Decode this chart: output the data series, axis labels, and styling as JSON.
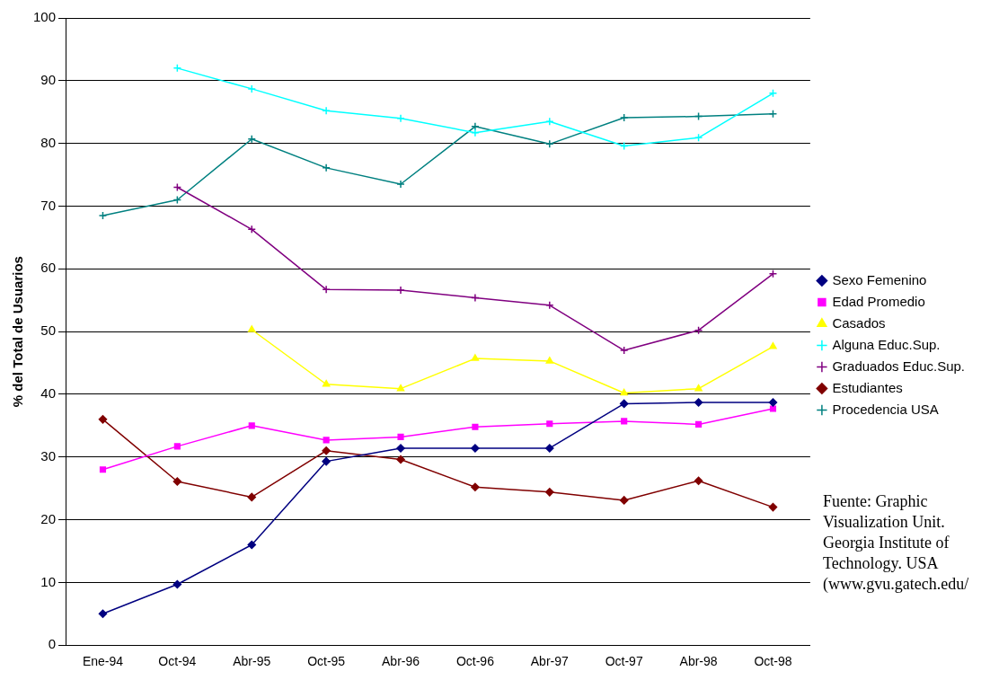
{
  "chart_data": {
    "type": "line",
    "ylabel": "% del Total de Usuarios",
    "categories": [
      "Ene-94",
      "Oct-94",
      "Abr-95",
      "Oct-95",
      "Abr-96",
      "Oct-96",
      "Abr-97",
      "Oct-97",
      "Abr-98",
      "Oct-98"
    ],
    "ylim": [
      0,
      100
    ],
    "yticks": [
      0,
      10,
      20,
      30,
      40,
      50,
      60,
      70,
      80,
      90,
      100
    ],
    "grid": "y",
    "legend": "right",
    "series": [
      {
        "name": "Sexo Femenino",
        "color": "#000080",
        "marker": "diamond",
        "values": [
          5,
          9.7,
          16,
          29.3,
          31.4,
          31.4,
          31.4,
          38.5,
          38.7,
          38.7
        ]
      },
      {
        "name": "Edad Promedio",
        "color": "#ff00ff",
        "marker": "square",
        "values": [
          28,
          31.7,
          35,
          32.7,
          33.2,
          34.8,
          35.3,
          35.7,
          35.2,
          37.7
        ]
      },
      {
        "name": "Casados",
        "color": "#ffff00",
        "marker": "triangle",
        "values": [
          null,
          null,
          50.3,
          41.6,
          40.9,
          45.7,
          45.3,
          40.2,
          40.9,
          47.6
        ]
      },
      {
        "name": "Alguna Educ.Sup.",
        "color": "#00ffff",
        "marker": "cross",
        "values": [
          null,
          92,
          88.7,
          85.2,
          84,
          81.7,
          83.5,
          79.6,
          80.9,
          88
        ]
      },
      {
        "name": "Graduados Educ.Sup.",
        "color": "#800080",
        "marker": "cross",
        "values": [
          null,
          73,
          66.3,
          56.7,
          56.6,
          55.4,
          54.2,
          47,
          50.2,
          59.2
        ]
      },
      {
        "name": "Estudiantes",
        "color": "#800000",
        "marker": "diamond",
        "values": [
          36,
          26.1,
          23.6,
          31,
          29.6,
          25.2,
          24.4,
          23.1,
          26.2,
          22
        ]
      },
      {
        "name": "Procedencia USA",
        "color": "#008080",
        "marker": "cross",
        "values": [
          68.5,
          71,
          80.7,
          76.1,
          73.5,
          82.7,
          79.9,
          84.1,
          84.3,
          84.7
        ]
      }
    ],
    "annotations": [
      "Fuente: Graphic Visualization Unit. Georgia Institute of Technology. USA (www.gvu.gatech.edu/"
    ]
  }
}
